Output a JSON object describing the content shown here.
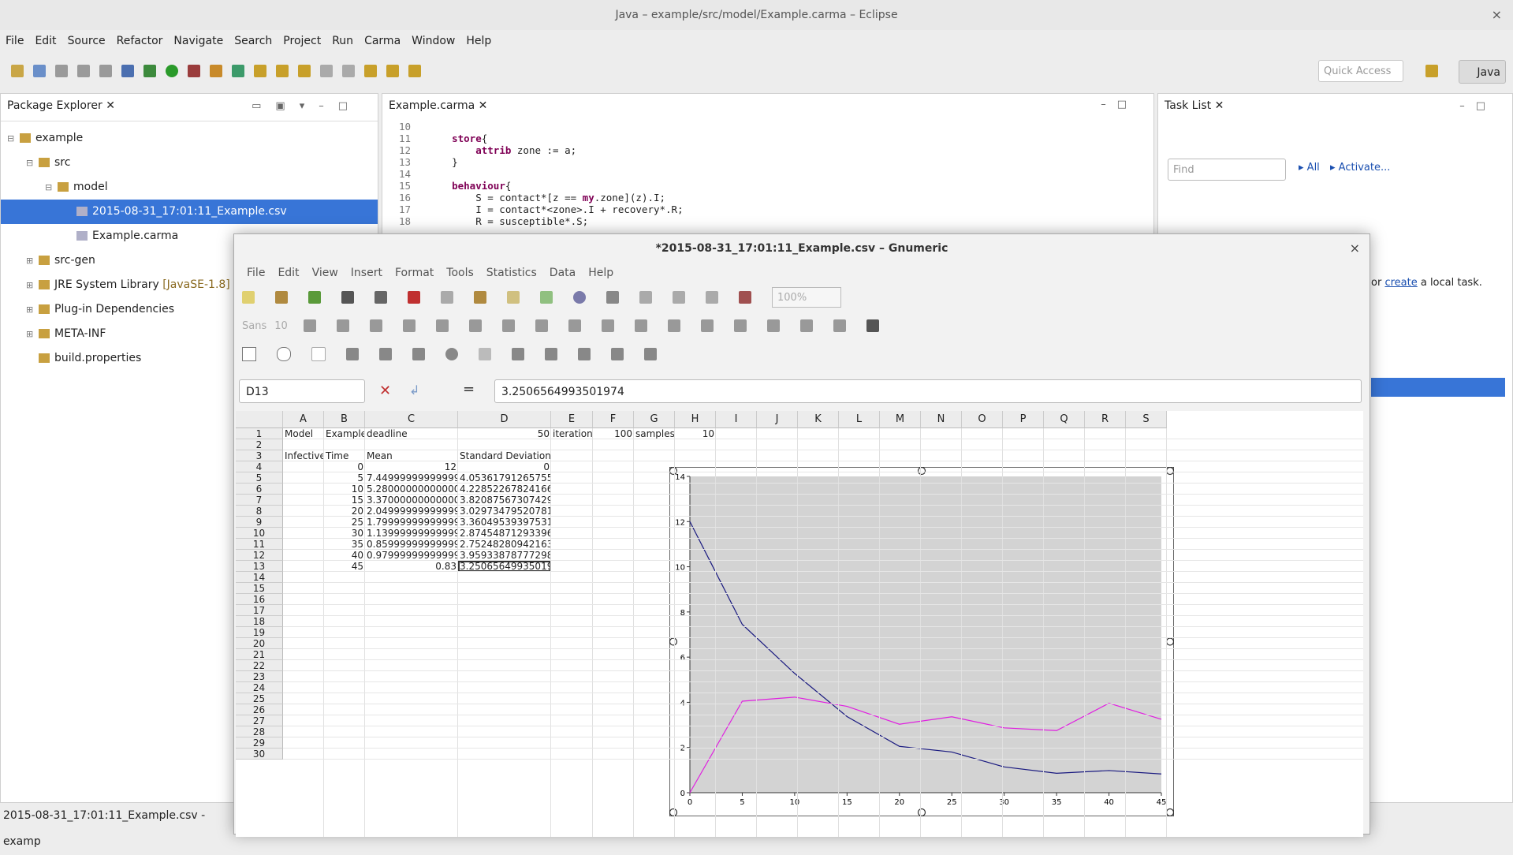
{
  "window": {
    "title": "Java – example/src/model/Example.carma – Eclipse",
    "close": "×"
  },
  "menu": [
    "File",
    "Edit",
    "Source",
    "Refactor",
    "Navigate",
    "Search",
    "Project",
    "Run",
    "Carma",
    "Window",
    "Help"
  ],
  "toolbar": {
    "quick_access": "Quick Access",
    "perspective": "Java"
  },
  "package_explorer": {
    "tab": "Package Explorer",
    "tree": [
      {
        "label": "example",
        "indent": 0,
        "sel": false
      },
      {
        "label": "src",
        "indent": 1,
        "sel": false
      },
      {
        "label": "model",
        "indent": 2,
        "sel": false
      },
      {
        "label": "2015-08-31_17:01:11_Example.csv",
        "indent": 3,
        "sel": true
      },
      {
        "label": "Example.carma",
        "indent": 3,
        "sel": false
      },
      {
        "label": "src-gen",
        "indent": 1,
        "sel": false
      },
      {
        "label": "JRE System Library",
        "suffix": "[JavaSE-1.8]",
        "indent": 1,
        "sel": false
      },
      {
        "label": "Plug-in Dependencies",
        "indent": 1,
        "sel": false
      },
      {
        "label": "META-INF",
        "indent": 1,
        "sel": false
      },
      {
        "label": "build.properties",
        "indent": 1,
        "sel": false
      }
    ]
  },
  "editor": {
    "tab": "Example.carma",
    "lines": [
      {
        "n": "10",
        "t": ""
      },
      {
        "n": "11",
        "t": "    store{"
      },
      {
        "n": "12",
        "t": "        attrib zone := a;"
      },
      {
        "n": "13",
        "t": "    }"
      },
      {
        "n": "14",
        "t": ""
      },
      {
        "n": "15",
        "t": "    behaviour{"
      },
      {
        "n": "16",
        "t": "        S = contact*[z == my.zone](z).I;"
      },
      {
        "n": "17",
        "t": "        I = contact*<zone>.I + recovery*.R;"
      },
      {
        "n": "18",
        "t": "        R = susceptible*.S;"
      }
    ]
  },
  "task_list": {
    "tab": "Task List",
    "find": "Find",
    "all": "All",
    "activate": "Activate...",
    "hint_pre": "or ",
    "hint_link": "create",
    "hint_post": " a local task."
  },
  "status": "2015-08-31_17:01:11_Example.csv - examp",
  "gnumeric": {
    "title": "*2015-08-31_17:01:11_Example.csv – Gnumeric",
    "menu": [
      "File",
      "Edit",
      "View",
      "Insert",
      "Format",
      "Tools",
      "Statistics",
      "Data",
      "Help"
    ],
    "zoom": "100%",
    "font_name": "Sans",
    "font_size": "10",
    "cell_ref": "D13",
    "formula": "3.2506564993501974",
    "columns": [
      "A",
      "B",
      "C",
      "D",
      "E",
      "F",
      "G",
      "H",
      "I",
      "J",
      "K",
      "L",
      "M",
      "N",
      "O",
      "P",
      "Q",
      "R",
      "S"
    ],
    "rows": [
      "1",
      "2",
      "3",
      "4",
      "5",
      "6",
      "7",
      "8",
      "9",
      "10",
      "11",
      "12",
      "13",
      "14",
      "15",
      "16",
      "17",
      "18",
      "19",
      "20",
      "21",
      "22",
      "23",
      "24",
      "25",
      "26",
      "27",
      "28",
      "29",
      "30"
    ],
    "r1": {
      "A": "Model",
      "B": "Example",
      "C": "deadline",
      "D": "50",
      "E": "iterations",
      "F": "100",
      "G": "samples",
      "H": "10"
    },
    "r3": {
      "A": "Infectives",
      "B": "Time",
      "C": "Mean",
      "D": "Standard Deviation"
    },
    "table": [
      [
        "0",
        "12",
        "0"
      ],
      [
        "5",
        "7.449999999999999",
        "4.053617912657554"
      ],
      [
        "10",
        "5.280000000000002",
        "4.228522678241661"
      ],
      [
        "15",
        "3.3700000000000014",
        "3.8208756730742905"
      ],
      [
        "20",
        "2.049999999999999",
        "3.0297347952078124"
      ],
      [
        "25",
        "1.7999999999999998",
        "3.3604953939753126"
      ],
      [
        "30",
        "1.1399999999999992",
        "2.8745487129339624"
      ],
      [
        "35",
        "0.8599999999999997",
        "2.7524828094216347"
      ],
      [
        "40",
        "0.9799999999999996",
        "3.9593387877729826"
      ],
      [
        "45",
        "0.83",
        "3.2506564993501974"
      ]
    ]
  },
  "chart_data": {
    "type": "line",
    "x": [
      0,
      5,
      10,
      15,
      20,
      25,
      30,
      35,
      40,
      45
    ],
    "series": [
      {
        "values": [
          12,
          7.45,
          5.28,
          3.37,
          2.05,
          1.8,
          1.14,
          0.86,
          0.98,
          0.83
        ],
        "color": "#1a1a80"
      },
      {
        "values": [
          0,
          4.05,
          4.23,
          3.82,
          3.03,
          3.36,
          2.87,
          2.75,
          3.96,
          3.25
        ],
        "color": "#e020e0"
      }
    ],
    "xlim": [
      0,
      45
    ],
    "ylim": [
      0,
      14
    ],
    "xticks": [
      "0",
      "5",
      "10",
      "15",
      "20",
      "25",
      "30",
      "35",
      "40",
      "45"
    ],
    "yticks": [
      "0",
      "2",
      "4",
      "6",
      "8",
      "10",
      "12",
      "14"
    ],
    "plot_bg": "#d3d3d3"
  }
}
